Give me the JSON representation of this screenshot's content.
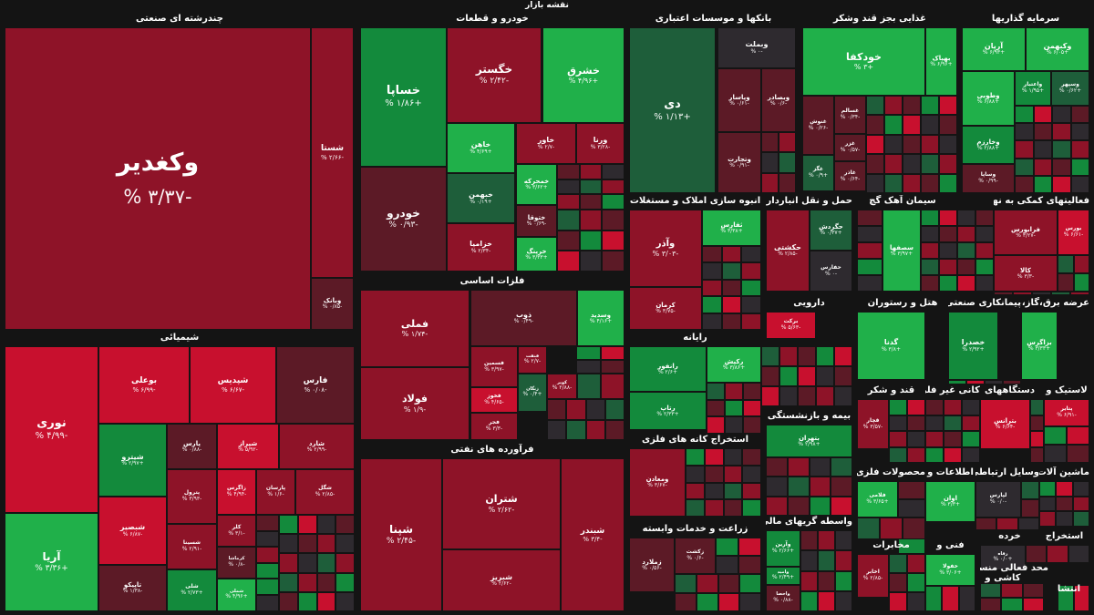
{
  "title": "نقشه بازار",
  "colors": {
    "neg_strong": "#c8102e",
    "neg_mid": "#8e1328",
    "neg_dark": "#5c1a26",
    "neutral": "#2e2a2f",
    "pos_dark": "#1e5e3a",
    "pos_mid": "#138a3c",
    "pos_strong": "#20b04a"
  },
  "chart_data": {
    "type": "heatmap",
    "sectors": [
      {
        "name": "چندرشته ای صنعتی",
        "tiles": [
          {
            "name": "وکغدیر",
            "change": "-۳/۳۷ %"
          },
          {
            "name": "شستا",
            "change": "-۲/۶۶ %"
          },
          {
            "name": "وبانک",
            "change": "-۰/۸۵ %"
          }
        ]
      },
      {
        "name": "خودرو و قطعات",
        "tiles": [
          {
            "name": "خساپا",
            "change": "+۱/۸۶ %"
          },
          {
            "name": "خگستر",
            "change": "-۲/۴۲ %"
          },
          {
            "name": "خشرق",
            "change": "+۴/۹۶ %"
          },
          {
            "name": "خودرو",
            "change": "-۰/۹۳ %"
          },
          {
            "name": "خاهن",
            "change": "+۴/۶۹ %"
          },
          {
            "name": "خاور",
            "change": "-۲/۷ %"
          },
          {
            "name": "ورنا",
            "change": "-۳/۲۸ %"
          },
          {
            "name": "خبهمن",
            "change": "+۰/۱۹ %"
          },
          {
            "name": "خمحرکه",
            "change": "+۳/۶۲ %"
          },
          {
            "name": "ختوقا",
            "change": "-۰/۶۹ %"
          },
          {
            "name": "خزامیا",
            "change": "-۲/۳۴ %"
          },
          {
            "name": "خرینگ",
            "change": "+۳/۳۳ %"
          }
        ]
      },
      {
        "name": "بانکها و موسسات اعتباری",
        "tiles": [
          {
            "name": "دی",
            "change": "+۱/۱۳ %"
          },
          {
            "name": "وبملت",
            "change": "-۰ %"
          },
          {
            "name": "وپاسار",
            "change": "-۰/۶۱ %"
          },
          {
            "name": "وبصادر",
            "change": "-۰/۶ %"
          },
          {
            "name": "وتجارت",
            "change": "-۰/۹۱ %"
          }
        ]
      },
      {
        "name": "غذایی بجز قند وشکر",
        "tiles": [
          {
            "name": "خودکفا",
            "change": "+۳ %"
          },
          {
            "name": "بهپاک",
            "change": "+۶/۹۶ %"
          },
          {
            "name": "غنوش",
            "change": "-۰/۲۶ %"
          },
          {
            "name": "غسالم",
            "change": "-۰/۳۴ %"
          },
          {
            "name": "غزر",
            "change": "-۰/۵۷ %"
          },
          {
            "name": "غگز",
            "change": "+۰/۹ %"
          },
          {
            "name": "غاذر",
            "change": "-۰/۶۴ %"
          }
        ]
      },
      {
        "name": "سرمایه گذاریها",
        "tiles": [
          {
            "name": "آریان",
            "change": "+۶/۹۳ %"
          },
          {
            "name": "وکبهمن",
            "change": "+۶/۰۵ %"
          },
          {
            "name": "وطوبی",
            "change": "+۶/۸۸ %"
          },
          {
            "name": "واعتبار",
            "change": "+۱/۹۵ %"
          },
          {
            "name": "وسپهر",
            "change": "+۰/۶۲ %"
          },
          {
            "name": "وخارزم",
            "change": "+۲/۸۸ %"
          },
          {
            "name": "وساپا",
            "change": "-۰/۹۹ %"
          }
        ]
      },
      {
        "name": "شیمیائی",
        "tiles": [
          {
            "name": "نوری",
            "change": "-۴/۹۹ %"
          },
          {
            "name": "بوعلی",
            "change": "-۶/۹۹ %"
          },
          {
            "name": "شپدیس",
            "change": "-۶/۶۷ %"
          },
          {
            "name": "فارس",
            "change": "-۰/۰۸ %"
          },
          {
            "name": "آریا",
            "change": "+۳/۳۶ %"
          },
          {
            "name": "شیترو",
            "change": "+۲/۹۷ %"
          },
          {
            "name": "پارس",
            "change": "-۰/۸۸ %"
          },
          {
            "name": "شیراز",
            "change": "-۵/۹۲ %"
          },
          {
            "name": "شارد",
            "change": "-۲/۹۹ %"
          },
          {
            "name": "شبصیر",
            "change": "-۶/۸۷ %"
          },
          {
            "name": "پترول",
            "change": "-۳/۹۳ %"
          },
          {
            "name": "زاگرس",
            "change": "-۴/۹۴ %"
          },
          {
            "name": "پارسان",
            "change": "-۱/۶ %"
          },
          {
            "name": "شگل",
            "change": "-۲/۸۵ %"
          },
          {
            "name": "کلر",
            "change": "-۳/۱ %"
          },
          {
            "name": "شسینا",
            "change": "-۲/۹۱ %"
          },
          {
            "name": "کرماشا",
            "change": "-۰/۸ %"
          },
          {
            "name": "تاپیکو",
            "change": "-۱/۳۸ %"
          },
          {
            "name": "شلی",
            "change": "+۲/۷۳ %"
          },
          {
            "name": "شملی",
            "change": "+۴/۹۶ %"
          }
        ]
      },
      {
        "name": "فلزات اساسی",
        "tiles": [
          {
            "name": "فملی",
            "change": "-۱/۷۴ %"
          },
          {
            "name": "ذوب",
            "change": "-۰/۴۹ %"
          },
          {
            "name": "وسدید",
            "change": "+۴/۱۶ %"
          },
          {
            "name": "فولاد",
            "change": "-۱/۹ %"
          },
          {
            "name": "فسمین",
            "change": "-۳/۹۷ %"
          },
          {
            "name": "فنفت",
            "change": "-۲/۷ %"
          },
          {
            "name": "زنگان",
            "change": "+۰/۴ %"
          },
          {
            "name": "فخوز",
            "change": "-۴/۶۵ %"
          },
          {
            "name": "فجر",
            "change": "-۳/۳ %"
          },
          {
            "name": "کویر",
            "change": "-۲/۸۸ %"
          }
        ]
      },
      {
        "name": "فرآورده های نفتی",
        "tiles": [
          {
            "name": "شپنا",
            "change": "-۲/۴۵ %"
          },
          {
            "name": "شتران",
            "change": "-۲/۶۲ %"
          },
          {
            "name": "شبندر",
            "change": "-۳/۴ %"
          },
          {
            "name": "شبریز",
            "change": "-۲/۶۲ %"
          }
        ]
      },
      {
        "name": "انبوه سازی املاک و مستغلات",
        "tiles": [
          {
            "name": "وآذر",
            "change": "-۳/۰۳ %"
          },
          {
            "name": "ثفارس",
            "change": "+۳/۳۸ %"
          },
          {
            "name": "کرمان",
            "change": "-۳/۷۵ %"
          }
        ]
      },
      {
        "name": "حمل و نقل انبارداری و",
        "tiles": [
          {
            "name": "حکشتی",
            "change": "-۲/۸۵ %"
          },
          {
            "name": "حگردش",
            "change": "+۰/۳۷ %"
          },
          {
            "name": "حفارس",
            "change": "-۰ %"
          }
        ]
      },
      {
        "name": "سیمان آهک گچ",
        "tiles": [
          {
            "name": "سصفها",
            "change": "+۳/۹۷ %"
          }
        ]
      },
      {
        "name": "فعالیتهای کمکی به نهاد",
        "tiles": [
          {
            "name": "فرابورس",
            "change": "-۳/۲۷ %"
          },
          {
            "name": "بورس",
            "change": "-۶/۶۱ %"
          },
          {
            "name": "کالا",
            "change": "-۳/۳ %"
          }
        ]
      },
      {
        "name": "رایانه",
        "tiles": [
          {
            "name": "رکیش",
            "change": "+۳/۸۶ %"
          },
          {
            "name": "رانفور",
            "change": "+۲/۶ %"
          },
          {
            "name": "رتاپ",
            "change": "+۲/۳۳ %"
          }
        ]
      },
      {
        "name": "دارویی",
        "tiles": [
          {
            "name": "برکت",
            "change": "-۵/۶۳ %"
          }
        ]
      },
      {
        "name": "هتل و رستوران",
        "tiles": [
          {
            "name": "گدنا",
            "change": "+۳/۸ %"
          }
        ]
      },
      {
        "name": "پیمانکاری صنعتی",
        "tiles": [
          {
            "name": "خصدرا",
            "change": "+۲/۹۲ %"
          }
        ]
      },
      {
        "name": "عرضه برق،گاز،بخار",
        "tiles": [
          {
            "name": "بزاگرس",
            "change": "+۳/۳۳ %"
          }
        ]
      },
      {
        "name": "استخراج کانه های فلزی",
        "tiles": [
          {
            "name": "ومعادن",
            "change": "-۳/۶۷ %"
          }
        ]
      },
      {
        "name": "بیمه و بازنشستگی",
        "tiles": [
          {
            "name": "بتهران",
            "change": "+۲/۹۸ %"
          }
        ]
      },
      {
        "name": "قند و شکر",
        "tiles": [
          {
            "name": "قچار",
            "change": "-۳/۵۷ %"
          }
        ]
      },
      {
        "name": "کانی غیر فلزی",
        "tiles": []
      },
      {
        "name": "دستگاههای",
        "tiles": [
          {
            "name": "بترانس",
            "change": "-۶/۶۴ %"
          }
        ]
      },
      {
        "name": "لاستیک و",
        "tiles": [
          {
            "name": "پتایر",
            "change": "-۶/۹۱ %"
          }
        ]
      },
      {
        "name": "محصولات فلزی",
        "tiles": [
          {
            "name": "فلامی",
            "change": "+۳/۶۵ %"
          }
        ]
      },
      {
        "name": "اطلاعات و",
        "tiles": [
          {
            "name": "اوان",
            "change": "+۳/۳ %"
          }
        ]
      },
      {
        "name": "وسایل ارتباطی",
        "tiles": [
          {
            "name": "لپارس",
            "change": "-۰/۰ %"
          }
        ]
      },
      {
        "name": "ماشین آلات و",
        "tiles": []
      },
      {
        "name": "زراعت و خدمات وابسته",
        "tiles": [
          {
            "name": "زملارد",
            "change": "-۰/۵۶ %"
          },
          {
            "name": "زکشت",
            "change": "-۰/۶ %"
          }
        ]
      },
      {
        "name": "واسطه گریهای مالی و",
        "tiles": [
          {
            "name": "وآرین",
            "change": "+۲/۶۶ %"
          },
          {
            "name": "وامید",
            "change": "+۲/۴۹ %"
          },
          {
            "name": "واحصا",
            "change": "-۰/۸۸ %"
          }
        ]
      },
      {
        "name": "مخابرات",
        "tiles": [
          {
            "name": "اخابر",
            "change": "-۲/۸۵ %"
          }
        ]
      },
      {
        "name": "فنی و",
        "tiles": [
          {
            "name": "خفولا",
            "change": "+۳/۰۶ %"
          }
        ]
      },
      {
        "name": "استخراج",
        "tiles": []
      },
      {
        "name": "خرده",
        "tiles": [
          {
            "name": "رفاه",
            "change": "+۰/۰ %"
          }
        ]
      },
      {
        "name": "محد فعالی منسو",
        "tiles": []
      },
      {
        "name": "کاشی و",
        "tiles": []
      },
      {
        "name": "انتشا",
        "tiles": []
      }
    ]
  }
}
